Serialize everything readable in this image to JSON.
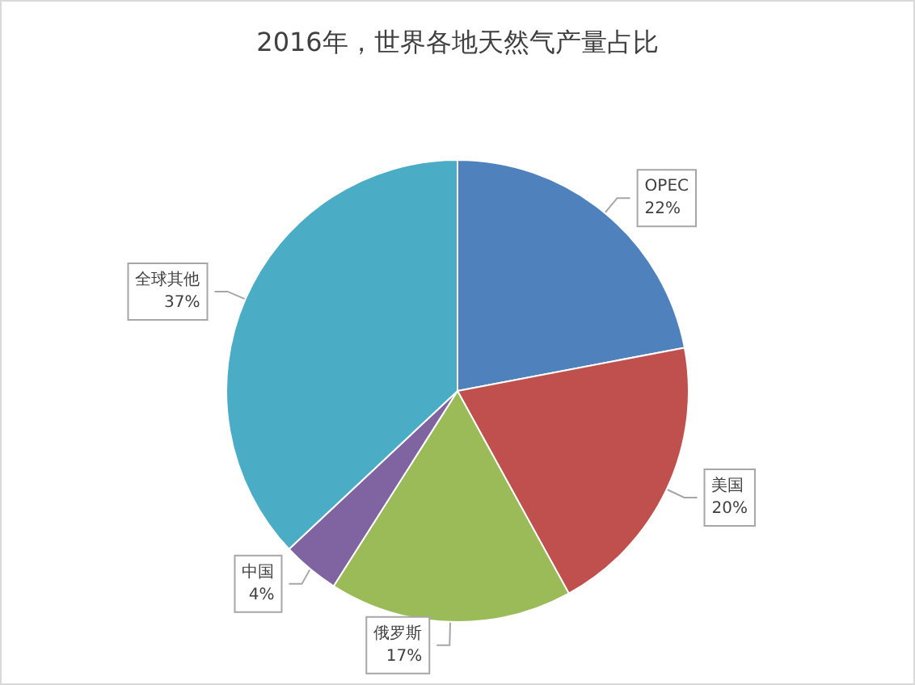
{
  "chart_data": {
    "type": "pie",
    "title": "2016年，世界各地天然气产量占比",
    "categories": [
      "OPEC",
      "美国",
      "俄罗斯",
      "中国",
      "全球其他"
    ],
    "values": [
      22,
      20,
      17,
      4,
      37
    ],
    "value_labels": [
      "22%",
      "20%",
      "17%",
      "4%",
      "37%"
    ],
    "colors": [
      "#4f81bd",
      "#c0504d",
      "#9bbb59",
      "#8064a2",
      "#4bacc6"
    ]
  }
}
